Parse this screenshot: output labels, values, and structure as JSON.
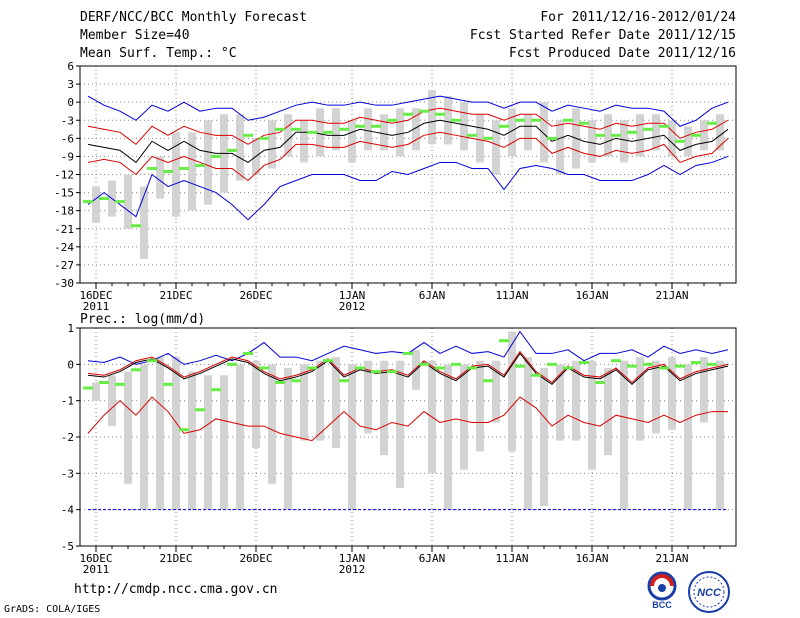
{
  "header": {
    "title": "DERF/NCC/BCC Monthly Forecast",
    "member": "Member Size=40",
    "variable": "Mean Surf. Temp.: °C",
    "period": "For 2011/12/16-2012/01/24",
    "started": "Fcst Started Refer Date 2011/12/15",
    "produced": "Fcst Produced Date 2011/12/16"
  },
  "footer": {
    "url": "http://cmdp.ncc.cma.gov.cn",
    "credit": "GrADS: COLA/IGES",
    "logo_bcc": "BCC",
    "logo_ncc": "NCC"
  },
  "colors": {
    "ensemble_bar": "#d3d3d3",
    "member_mark": "#66ee44",
    "envelope": "#0000dd",
    "quantile": "#dd0000",
    "mean": "#000000"
  },
  "chart_data": [
    {
      "type": "line",
      "title": "Mean Surf. Temp.: °C",
      "ylabel": "°C",
      "ylim": [
        -30,
        6
      ],
      "yticks": [
        6,
        3,
        0,
        -3,
        -6,
        -9,
        -12,
        -15,
        -18,
        -21,
        -24,
        -27,
        -30
      ],
      "x_labels": [
        {
          "day": 1,
          "label": "16DEC",
          "sub": "2011"
        },
        {
          "day": 6,
          "label": "21DEC",
          "sub": ""
        },
        {
          "day": 11,
          "label": "26DEC",
          "sub": ""
        },
        {
          "day": 17,
          "label": "1JAN",
          "sub": "2012"
        },
        {
          "day": 22,
          "label": "6JAN",
          "sub": ""
        },
        {
          "day": 27,
          "label": "11JAN",
          "sub": ""
        },
        {
          "day": 32,
          "label": "16JAN",
          "sub": ""
        },
        {
          "day": 37,
          "label": "21JAN",
          "sub": ""
        }
      ],
      "days": 40,
      "grid": true,
      "series": [
        {
          "name": "max",
          "color": "#0000dd",
          "values": [
            1,
            -0.5,
            -1.5,
            -3,
            -0.5,
            -1.5,
            0,
            -1.5,
            -1,
            -1,
            -3,
            -2.5,
            -1.5,
            -0.5,
            0,
            -0.5,
            -0.5,
            0,
            -0.5,
            -0.5,
            0,
            0.5,
            1,
            0.5,
            0,
            0,
            -1,
            0,
            0,
            -1.5,
            -0.5,
            -1,
            -1.5,
            -0.5,
            -1,
            -1,
            -1.5,
            -4,
            -3,
            -1,
            0
          ]
        },
        {
          "name": "upper",
          "color": "#dd0000",
          "values": [
            -4,
            -4.5,
            -5,
            -7,
            -4,
            -5.5,
            -4,
            -5,
            -5.5,
            -5.5,
            -7,
            -5.5,
            -5,
            -3,
            -3,
            -3.5,
            -3.5,
            -2.5,
            -3,
            -3.5,
            -3,
            -1.5,
            -1,
            -1.5,
            -2,
            -2,
            -3,
            -2,
            -2,
            -4,
            -3.5,
            -4,
            -4.5,
            -3.5,
            -4,
            -3.5,
            -3.5,
            -6,
            -5,
            -4.5,
            -3
          ]
        },
        {
          "name": "mean",
          "color": "#000000",
          "values": [
            -7,
            -7.5,
            -8,
            -10,
            -6.5,
            -8,
            -6.5,
            -8,
            -8.5,
            -8.5,
            -10,
            -8,
            -7.5,
            -5,
            -5,
            -5.5,
            -5.5,
            -4.5,
            -5,
            -5.5,
            -5,
            -3.5,
            -3,
            -3.5,
            -4,
            -4.5,
            -5.5,
            -4,
            -4,
            -6.5,
            -5.5,
            -6.5,
            -7,
            -6,
            -6.5,
            -6,
            -5.5,
            -8,
            -7,
            -6.5,
            -4.5
          ]
        },
        {
          "name": "lower",
          "color": "#dd0000",
          "values": [
            -10,
            -9.5,
            -10,
            -12,
            -9,
            -10,
            -9,
            -10,
            -11,
            -11,
            -13,
            -10.5,
            -9.5,
            -7,
            -7,
            -7.5,
            -7.5,
            -6.5,
            -7,
            -7.5,
            -7,
            -5.5,
            -5,
            -5.5,
            -6,
            -6.5,
            -7.5,
            -6,
            -6,
            -8.5,
            -7.5,
            -8.5,
            -9,
            -8,
            -8.5,
            -8,
            -7,
            -10,
            -9,
            -8.5,
            -6
          ]
        },
        {
          "name": "min",
          "color": "#0000dd",
          "values": [
            -17,
            -15,
            -17,
            -19,
            -12,
            -14,
            -13,
            -14,
            -15,
            -17,
            -19.5,
            -17,
            -14,
            -13,
            -12,
            -12,
            -12,
            -13,
            -13,
            -11.5,
            -12,
            -11,
            -10,
            -10,
            -11,
            -11,
            -14.5,
            -11,
            -10.5,
            -11,
            -12,
            -12,
            -13,
            -13,
            -13,
            -12,
            -10.5,
            -12,
            -10.5,
            -10,
            -9
          ]
        }
      ],
      "bars": [
        {
          "lo": -20,
          "hi": -14
        },
        {
          "lo": -19,
          "hi": -13
        },
        {
          "lo": -21,
          "hi": -12
        },
        {
          "lo": -26,
          "hi": -14
        },
        {
          "lo": -16,
          "hi": -9
        },
        {
          "lo": -19,
          "hi": -5
        },
        {
          "lo": -18,
          "hi": -5
        },
        {
          "lo": -17,
          "hi": -3
        },
        {
          "lo": -15,
          "hi": -2
        },
        {
          "lo": -13,
          "hi": -2
        },
        {
          "lo": -12,
          "hi": -6
        },
        {
          "lo": -11,
          "hi": -3
        },
        {
          "lo": -9,
          "hi": -2
        },
        {
          "lo": -10,
          "hi": -3
        },
        {
          "lo": -9,
          "hi": -1
        },
        {
          "lo": -8,
          "hi": -1
        },
        {
          "lo": -10,
          "hi": -3
        },
        {
          "lo": -8,
          "hi": -1
        },
        {
          "lo": -8,
          "hi": -2
        },
        {
          "lo": -9,
          "hi": -1
        },
        {
          "lo": -8,
          "hi": -1
        },
        {
          "lo": -7,
          "hi": 2
        },
        {
          "lo": -7,
          "hi": 1
        },
        {
          "lo": -8,
          "hi": 0
        },
        {
          "lo": -10,
          "hi": -2
        },
        {
          "lo": -12,
          "hi": -3
        },
        {
          "lo": -9,
          "hi": -1
        },
        {
          "lo": -8,
          "hi": -2
        },
        {
          "lo": -10,
          "hi": 0
        },
        {
          "lo": -12,
          "hi": -3
        },
        {
          "lo": -11,
          "hi": -1
        },
        {
          "lo": -10,
          "hi": -3
        },
        {
          "lo": -9,
          "hi": -2
        },
        {
          "lo": -10,
          "hi": -3
        },
        {
          "lo": -9,
          "hi": -2
        },
        {
          "lo": -8,
          "hi": -2
        },
        {
          "lo": -9,
          "hi": -3
        },
        {
          "lo": -9,
          "hi": -4
        },
        {
          "lo": -8,
          "hi": -3
        },
        {
          "lo": -8,
          "hi": -2
        }
      ],
      "marks": [
        -16.5,
        -16,
        -16.5,
        -20.5,
        -11,
        -11.5,
        -11,
        -10.5,
        -9,
        -8,
        -5.5,
        -6,
        -4.5,
        -4.5,
        -5,
        -5,
        -4.5,
        -4,
        -4,
        -3,
        -2,
        -1.5,
        -2,
        -3,
        -5.5,
        -6,
        -4,
        -3,
        -3,
        -6,
        -3,
        -3.5,
        -5.5,
        -5.5,
        -5,
        -4.5,
        -4,
        -6.5,
        -5.5,
        -3.5,
        -2
      ]
    },
    {
      "type": "line",
      "title": "Prec.: log(mm/d)",
      "ylabel": "log(mm/d)",
      "ylim": [
        -5,
        1
      ],
      "yticks": [
        1,
        0,
        -1,
        -2,
        -3,
        -4,
        -5
      ],
      "x_labels": [
        {
          "day": 1,
          "label": "16DEC",
          "sub": "2011"
        },
        {
          "day": 6,
          "label": "21DEC",
          "sub": ""
        },
        {
          "day": 11,
          "label": "26DEC",
          "sub": ""
        },
        {
          "day": 17,
          "label": "1JAN",
          "sub": "2012"
        },
        {
          "day": 22,
          "label": "6JAN",
          "sub": ""
        },
        {
          "day": 27,
          "label": "11JAN",
          "sub": ""
        },
        {
          "day": 32,
          "label": "16JAN",
          "sub": ""
        },
        {
          "day": 37,
          "label": "21JAN",
          "sub": ""
        }
      ],
      "days": 40,
      "grid": true,
      "series": [
        {
          "name": "max",
          "color": "#0000dd",
          "values": [
            0.1,
            0.05,
            0.2,
            0,
            0.1,
            0.3,
            0,
            0.1,
            0.25,
            0.1,
            0.3,
            0.6,
            0.2,
            0.2,
            0.1,
            0.3,
            0.5,
            0.4,
            0.3,
            0.35,
            0.3,
            0.6,
            0.3,
            0.5,
            0.3,
            0.35,
            0.2,
            0.9,
            0.3,
            0.3,
            0.4,
            0.1,
            0.3,
            0.3,
            0.4,
            0.2,
            0.5,
            0.3,
            0.4,
            0.3,
            0.4
          ]
        },
        {
          "name": "mean_hi",
          "color": "#dd0000",
          "values": [
            -0.25,
            -0.3,
            -0.15,
            0.1,
            0.2,
            -0.05,
            -0.35,
            -0.2,
            0,
            0.2,
            0.1,
            -0.2,
            -0.4,
            -0.3,
            -0.15,
            0.15,
            -0.3,
            -0.1,
            -0.2,
            -0.15,
            -0.3,
            0.1,
            -0.2,
            -0.4,
            -0.05,
            0,
            -0.3,
            0.35,
            -0.2,
            -0.5,
            -0.05,
            -0.3,
            -0.35,
            -0.1,
            -0.5,
            -0.1,
            0,
            -0.4,
            -0.2,
            -0.1,
            0
          ]
        },
        {
          "name": "mean",
          "color": "#000000",
          "values": [
            -0.3,
            -0.35,
            -0.2,
            0.05,
            0.15,
            -0.1,
            -0.4,
            -0.25,
            -0.05,
            0.15,
            0.05,
            -0.25,
            -0.45,
            -0.35,
            -0.2,
            0.1,
            -0.35,
            -0.15,
            -0.25,
            -0.2,
            -0.35,
            0.05,
            -0.25,
            -0.45,
            -0.1,
            -0.05,
            -0.35,
            0.3,
            -0.25,
            -0.55,
            -0.1,
            -0.35,
            -0.4,
            -0.15,
            -0.55,
            -0.15,
            -0.05,
            -0.45,
            -0.25,
            -0.15,
            -0.05
          ]
        },
        {
          "name": "lower",
          "color": "#dd0000",
          "values": [
            -1.9,
            -1.4,
            -1.0,
            -1.4,
            -0.9,
            -1.3,
            -1.9,
            -1.8,
            -1.5,
            -1.6,
            -1.7,
            -1.7,
            -1.9,
            -2.0,
            -2.1,
            -1.7,
            -1.3,
            -1.7,
            -1.8,
            -1.6,
            -1.7,
            -1.3,
            -1.6,
            -1.5,
            -1.6,
            -1.6,
            -1.4,
            -0.9,
            -1.2,
            -1.7,
            -1.4,
            -1.6,
            -1.7,
            -1.4,
            -1.5,
            -1.6,
            -1.4,
            -1.6,
            -1.4,
            -1.3,
            -1.3
          ]
        },
        {
          "name": "min",
          "color": "#0000dd",
          "values": [
            -4,
            -4,
            -4,
            -4,
            -4,
            -4,
            -4,
            -4,
            -4,
            -4,
            -4,
            -4,
            -4,
            -4,
            -4,
            -4,
            -4,
            -4,
            -4,
            -4,
            -4,
            -4,
            -4,
            -4,
            -4,
            -4,
            -4,
            -4,
            -4,
            -4,
            -4,
            -4,
            -4,
            -4,
            -4,
            -4,
            -4,
            -4,
            -4,
            -4,
            -4
          ]
        }
      ],
      "bars": [
        {
          "lo": -1,
          "hi": -0.5
        },
        {
          "lo": -1.7,
          "hi": -0.3
        },
        {
          "lo": -3.3,
          "hi": -0.2
        },
        {
          "lo": -4,
          "hi": 0
        },
        {
          "lo": -4,
          "hi": 0.2
        },
        {
          "lo": -4,
          "hi": 0.2
        },
        {
          "lo": -4,
          "hi": -0.2
        },
        {
          "lo": -4,
          "hi": -0.3
        },
        {
          "lo": -4,
          "hi": -0.3
        },
        {
          "lo": -4,
          "hi": 0
        },
        {
          "lo": -2.3,
          "hi": 0.1
        },
        {
          "lo": -3.3,
          "hi": 0
        },
        {
          "lo": -4,
          "hi": -0.1
        },
        {
          "lo": -2.1,
          "hi": 0
        },
        {
          "lo": -2.1,
          "hi": 0.1
        },
        {
          "lo": -2.3,
          "hi": 0.2
        },
        {
          "lo": -4,
          "hi": 0
        },
        {
          "lo": -1.9,
          "hi": 0.1
        },
        {
          "lo": -2.5,
          "hi": 0.1
        },
        {
          "lo": -3.4,
          "hi": 0.1
        },
        {
          "lo": -0.7,
          "hi": 0.4
        },
        {
          "lo": -3.0,
          "hi": 0.1
        },
        {
          "lo": -4,
          "hi": 0
        },
        {
          "lo": -2.9,
          "hi": 0
        },
        {
          "lo": -2.4,
          "hi": 0.1
        },
        {
          "lo": -1.6,
          "hi": 0.1
        },
        {
          "lo": -2.4,
          "hi": 0.9
        },
        {
          "lo": -4,
          "hi": 0.2
        },
        {
          "lo": -3.9,
          "hi": -0.1
        },
        {
          "lo": -2.1,
          "hi": 0
        },
        {
          "lo": -2.1,
          "hi": 0.1
        },
        {
          "lo": -2.9,
          "hi": 0.1
        },
        {
          "lo": -2.5,
          "hi": -0.1
        },
        {
          "lo": -4,
          "hi": 0.1
        },
        {
          "lo": -2.1,
          "hi": 0.2
        },
        {
          "lo": -1.9,
          "hi": 0.1
        },
        {
          "lo": -1.8,
          "hi": 0.2
        },
        {
          "lo": -4,
          "hi": 0
        },
        {
          "lo": -1.6,
          "hi": 0.2
        },
        {
          "lo": -4,
          "hi": 0.1
        }
      ],
      "marks": [
        -0.65,
        -0.5,
        -0.55,
        -0.15,
        0.1,
        -0.55,
        -1.8,
        -1.25,
        -0.7,
        0,
        0.3,
        -0.1,
        -0.5,
        -0.45,
        -0.1,
        0.1,
        -0.45,
        -0.1,
        -0.2,
        -0.2,
        0.3,
        0,
        -0.1,
        0,
        -0.1,
        -0.45,
        0.65,
        -0.05,
        -0.3,
        0,
        -0.1,
        0.05,
        -0.5,
        0.1,
        -0.05,
        0,
        -0.1,
        -0.05,
        0.05,
        0
      ]
    }
  ]
}
